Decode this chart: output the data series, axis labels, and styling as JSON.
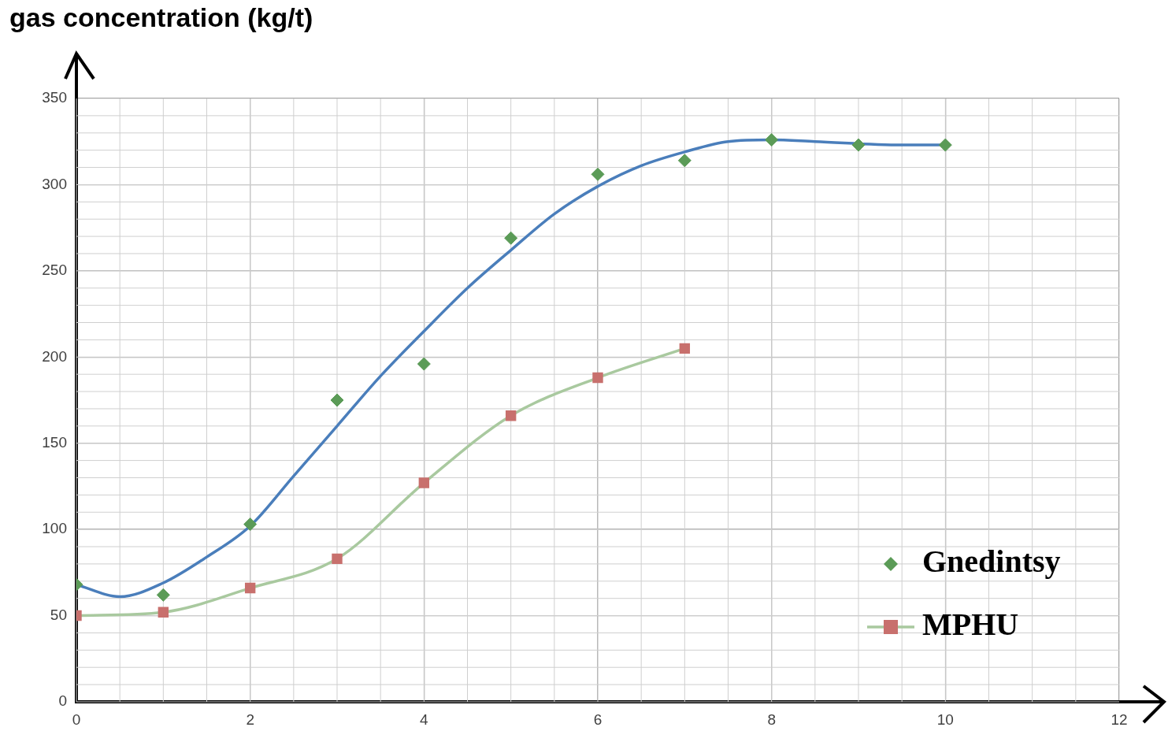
{
  "chart_data": {
    "type": "scatter",
    "ylabel": "gas concentration (kg/t)",
    "xlim": [
      0,
      12
    ],
    "xticks": [
      0,
      2,
      4,
      6,
      8,
      10,
      12
    ],
    "ylim": [
      0,
      350
    ],
    "yticks": [
      0,
      50,
      100,
      150,
      200,
      250,
      300,
      350
    ],
    "grid": true,
    "legend": "bottom right",
    "series": [
      {
        "name": "Gnedintsy",
        "marker": "diamond",
        "color": "#5b9b57",
        "x": [
          0,
          1,
          2,
          3,
          4,
          5,
          6,
          7,
          8,
          9,
          10
        ],
        "values": [
          68,
          62,
          103,
          175,
          196,
          269,
          306,
          314,
          326,
          323,
          323
        ]
      },
      {
        "type": "line",
        "marker": "none",
        "color": "#4a7ebb",
        "x": [
          0,
          0.5,
          1,
          1.5,
          2,
          2.5,
          3,
          3.5,
          4,
          4.5,
          5,
          5.5,
          6,
          6.5,
          7,
          7.5,
          8,
          8.5,
          9.5,
          10
        ],
        "values": [
          68,
          61,
          69,
          84,
          102,
          131,
          160,
          189,
          215,
          240,
          262,
          283,
          299,
          311,
          319,
          325,
          326,
          325,
          323,
          323
        ]
      },
      {
        "name": "MPHU",
        "type": "line",
        "marker": "square",
        "color": "#a9c99f",
        "colors": [
          "#c8706d",
          "#c8706d",
          "#c8706d",
          "#c8706d",
          "#c8706d",
          "#c8706d",
          "#c8706d",
          "#c8706d"
        ],
        "x": [
          0,
          1,
          2,
          3,
          4,
          5,
          6,
          7
        ],
        "values": [
          50,
          52,
          66,
          83,
          127,
          166,
          188,
          205
        ]
      }
    ]
  }
}
